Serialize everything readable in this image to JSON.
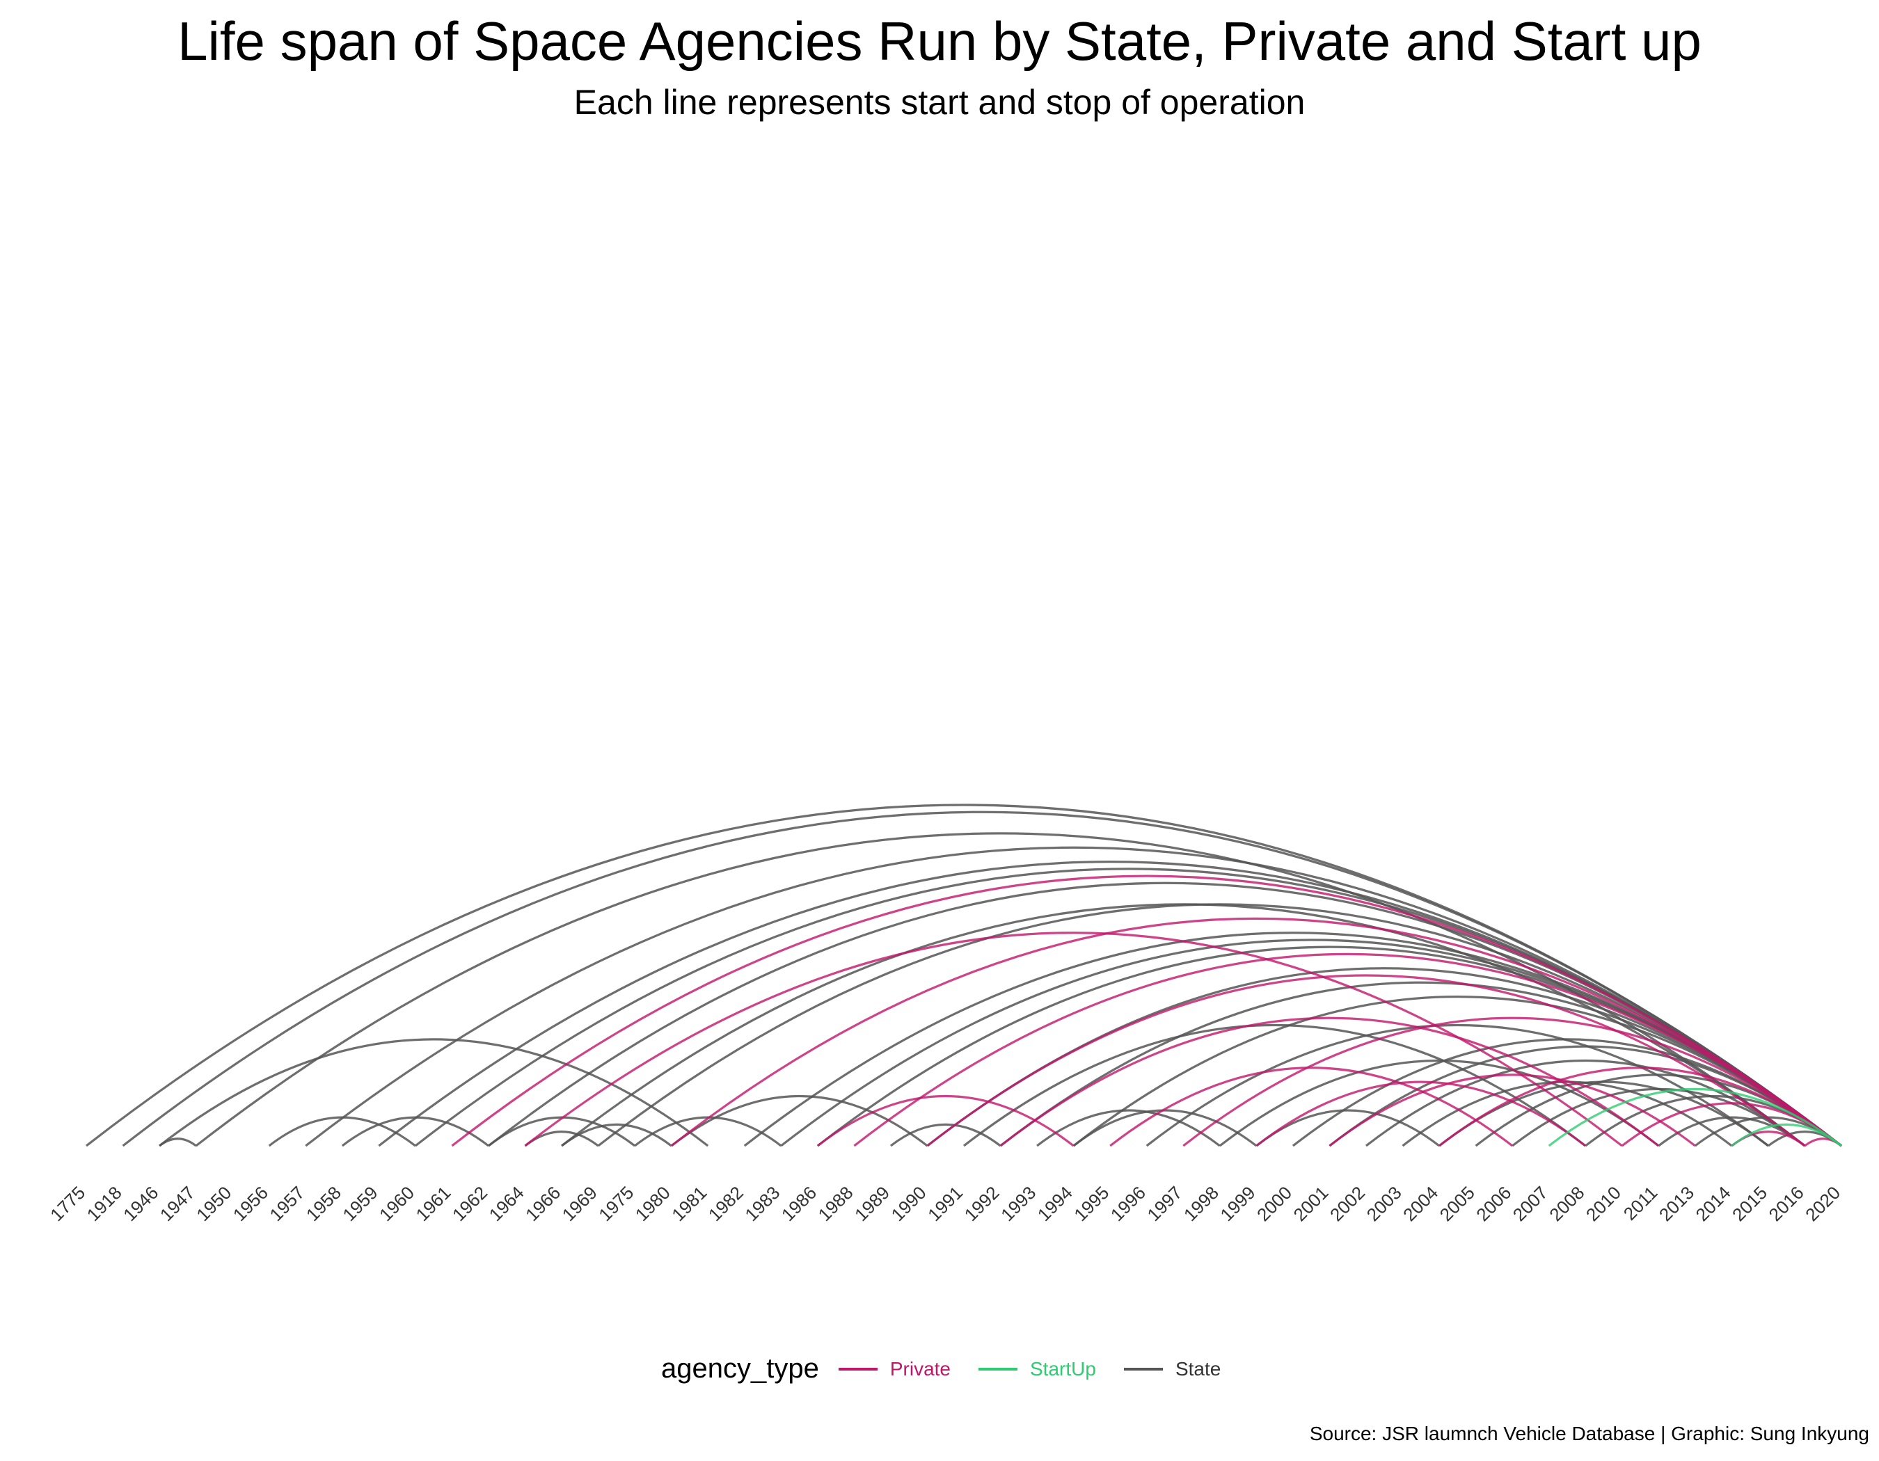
{
  "title": "Life span of Space Agencies Run by State, Private and Start up",
  "subtitle": "Each line represents start and stop of operation",
  "caption": "Source: JSR laumnch Vehicle Database | Graphic: Sung Inkyung",
  "legend": {
    "title": "agency_type",
    "items": [
      {
        "label": "Private",
        "color": "#c0166a"
      },
      {
        "label": "StartUp",
        "color": "#2ecc71"
      },
      {
        "label": "State",
        "color": "#555555"
      }
    ]
  },
  "chart_data": {
    "type": "arc",
    "categories": [
      "1775",
      "1918",
      "1946",
      "1947",
      "1950",
      "1956",
      "1957",
      "1958",
      "1959",
      "1960",
      "1961",
      "1962",
      "1964",
      "1966",
      "1969",
      "1975",
      "1980",
      "1981",
      "1982",
      "1983",
      "1986",
      "1988",
      "1989",
      "1990",
      "1991",
      "1992",
      "1993",
      "1994",
      "1995",
      "1996",
      "1997",
      "1998",
      "1999",
      "2000",
      "2001",
      "2002",
      "2003",
      "2004",
      "2005",
      "2006",
      "2007",
      "2008",
      "2010",
      "2011",
      "2013",
      "2014",
      "2015",
      "2016",
      "2020"
    ],
    "series": [
      {
        "name": "State",
        "arcs": [
          [
            "1775",
            "2020"
          ],
          [
            "1918",
            "2020"
          ],
          [
            "1946",
            "1981"
          ],
          [
            "1946",
            "1947"
          ],
          [
            "1947",
            "2016"
          ],
          [
            "1956",
            "1960"
          ],
          [
            "1957",
            "2020"
          ],
          [
            "1958",
            "1962"
          ],
          [
            "1959",
            "2020"
          ],
          [
            "1960",
            "2020"
          ],
          [
            "1962",
            "1975"
          ],
          [
            "1962",
            "2020"
          ],
          [
            "1964",
            "1969"
          ],
          [
            "1966",
            "2016"
          ],
          [
            "1966",
            "1980"
          ],
          [
            "1969",
            "2020"
          ],
          [
            "1975",
            "1983"
          ],
          [
            "1980",
            "1990"
          ],
          [
            "1982",
            "2020"
          ],
          [
            "1983",
            "2020"
          ],
          [
            "1986",
            "2020"
          ],
          [
            "1989",
            "1992"
          ],
          [
            "1990",
            "2020"
          ],
          [
            "1991",
            "2008"
          ],
          [
            "1992",
            "2020"
          ],
          [
            "1993",
            "1998"
          ],
          [
            "1994",
            "2020"
          ],
          [
            "1996",
            "2015"
          ],
          [
            "1998",
            "2011"
          ],
          [
            "1999",
            "2004"
          ],
          [
            "2000",
            "2020"
          ],
          [
            "2001",
            "2020"
          ],
          [
            "2002",
            "2016"
          ],
          [
            "2003",
            "2014"
          ],
          [
            "2004",
            "2015"
          ],
          [
            "2005",
            "2020"
          ],
          [
            "2006",
            "2016"
          ],
          [
            "2008",
            "2020"
          ],
          [
            "2011",
            "2016"
          ],
          [
            "2013",
            "2020"
          ],
          [
            "2015",
            "2020"
          ],
          [
            "1994",
            "1999"
          ]
        ]
      },
      {
        "name": "Private",
        "arcs": [
          [
            "1961",
            "2020"
          ],
          [
            "1964",
            "2010"
          ],
          [
            "1980",
            "2020"
          ],
          [
            "1986",
            "1994"
          ],
          [
            "1988",
            "2020"
          ],
          [
            "1990",
            "2016"
          ],
          [
            "1992",
            "2011"
          ],
          [
            "1995",
            "2006"
          ],
          [
            "1997",
            "2020"
          ],
          [
            "1999",
            "2008"
          ],
          [
            "2001",
            "2013"
          ],
          [
            "2004",
            "2020"
          ],
          [
            "2010",
            "2020"
          ],
          [
            "2014",
            "2016"
          ],
          [
            "2016",
            "2020"
          ]
        ]
      },
      {
        "name": "StartUp",
        "arcs": [
          [
            "2007",
            "2020"
          ],
          [
            "2014",
            "2020"
          ]
        ]
      }
    ]
  }
}
